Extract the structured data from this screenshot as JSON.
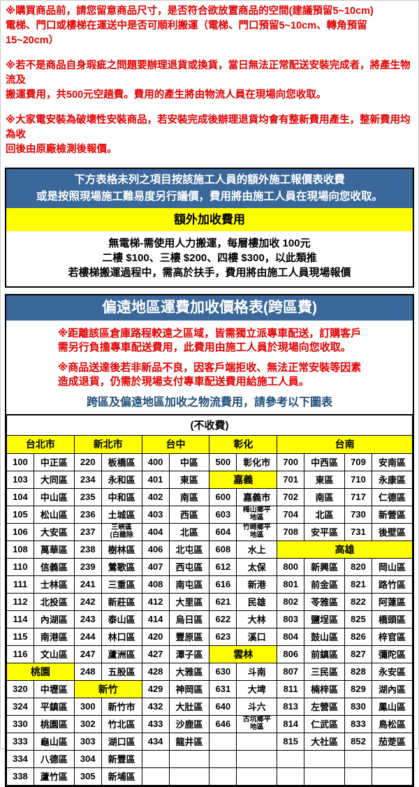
{
  "colors": {
    "warning_red": "#e30000",
    "header_blue": "#3a689a",
    "highlight_yellow": "#ffff00",
    "note_blue": "#1f4e79"
  },
  "top_notice": {
    "paragraphs": [
      [
        "※購買商品前，請您留意商品尺寸，是否符合欲放置商品的空間(建議預留5~10cm)",
        "電梯、門口或樓梯在運送中是否可順利搬運（電梯、門口預留5~10cm、轉角預留15~20cm）"
      ],
      [
        "※若不是商品自身瑕疵之問題要辦理退貨或換貨，當日無法正常配送安裝完成者，將產生物流及",
        "搬運費用，共500元空趟費。費用的產生將由物流人員在現場向您收取。"
      ],
      [
        "※大家電安裝為破壞性安裝商品，若安裝完成後辦理退貨均會有整新費用產生，整新費用均為收",
        "回後由原廠檢測後報價。"
      ]
    ]
  },
  "extra_fee_box": {
    "header_lines": [
      "下方表格未列之項目按該施工人員的額外施工報價表收費",
      "或是按照現場施工難易度另行議價，費用將由施工人員在現場向您收取。"
    ],
    "yellow_title": "額外加收費用",
    "body_lines": [
      "無電梯-需使用人力搬運，每層樓加收 100元",
      "二樓 $100、三樓 $200、四樓 $300，以此類推",
      "若樓梯搬運過程中，需高於扶手，費用將由施工人員現場報價"
    ]
  },
  "remote_fee_box": {
    "title": "偏遠地區運費加收價格表(跨區費)",
    "warnings": [
      [
        "※距離該區倉庫路程較遠之區域，皆需獨立派專車配送，訂購客戶",
        "需另行負擔專車配送費用，此費用由施工人員於現場向您收取。"
      ],
      [
        "※商品送達後若非新品不良，因客戶端拒收、無法正常安裝等因素",
        "造成退貨，仍需於現場支付專車配送費用給施工人員。"
      ]
    ],
    "note": "跨區及偏遠地區加收之物流費用，請參考以下圖表",
    "table": {
      "free_label": "(不收費)",
      "header": [
        {
          "label": "台北市",
          "span": 2
        },
        {
          "label": "新北市",
          "span": 2
        },
        {
          "label": "台中",
          "span": 2
        },
        {
          "label": "彰化",
          "span": 2
        },
        {
          "label": "台南",
          "span": 4
        }
      ],
      "rows": [
        [
          {
            "t": "100"
          },
          {
            "t": "中正區"
          },
          {
            "t": "220"
          },
          {
            "t": "板橋區"
          },
          {
            "t": "400"
          },
          {
            "t": "中區"
          },
          {
            "t": "500"
          },
          {
            "t": "彰化市"
          },
          {
            "t": "700"
          },
          {
            "t": "中西區"
          },
          {
            "t": "709"
          },
          {
            "t": "安南區"
          }
        ],
        [
          {
            "t": "103"
          },
          {
            "t": "大同區"
          },
          {
            "t": "234"
          },
          {
            "t": "永和區"
          },
          {
            "t": "401"
          },
          {
            "t": "東區"
          },
          {
            "t": "嘉義",
            "s": 2,
            "h": true
          },
          {
            "t": "701"
          },
          {
            "t": "東區"
          },
          {
            "t": "710"
          },
          {
            "t": "永康區"
          }
        ],
        [
          {
            "t": "104"
          },
          {
            "t": "中山區"
          },
          {
            "t": "235"
          },
          {
            "t": "中和區"
          },
          {
            "t": "402"
          },
          {
            "t": "南區"
          },
          {
            "t": "600"
          },
          {
            "t": "嘉義市"
          },
          {
            "t": "702"
          },
          {
            "t": "南區"
          },
          {
            "t": "717"
          },
          {
            "t": "仁德區"
          }
        ],
        [
          {
            "t": "105"
          },
          {
            "t": "松山區"
          },
          {
            "t": "236"
          },
          {
            "t": "土城區"
          },
          {
            "t": "403"
          },
          {
            "t": "西區"
          },
          {
            "t": "603"
          },
          {
            "t": "梅山鄉平\n地區"
          },
          {
            "t": "704"
          },
          {
            "t": "北區"
          },
          {
            "t": "730"
          },
          {
            "t": "新營區"
          }
        ],
        [
          {
            "t": "106"
          },
          {
            "t": "大安區"
          },
          {
            "t": "237"
          },
          {
            "t": "三峽區\n(白雞除"
          },
          {
            "t": "404"
          },
          {
            "t": "北區"
          },
          {
            "t": "604"
          },
          {
            "t": "竹崎鄉平\n地區"
          },
          {
            "t": "708"
          },
          {
            "t": "安平區"
          },
          {
            "t": "731"
          },
          {
            "t": "後壁區"
          }
        ],
        [
          {
            "t": "108"
          },
          {
            "t": "萬華區"
          },
          {
            "t": "238"
          },
          {
            "t": "樹林區"
          },
          {
            "t": "406"
          },
          {
            "t": "北屯區"
          },
          {
            "t": "608"
          },
          {
            "t": "水上"
          },
          {
            "t": "高雄",
            "s": 4,
            "h": true
          }
        ],
        [
          {
            "t": "110"
          },
          {
            "t": "信義區"
          },
          {
            "t": "239"
          },
          {
            "t": "鶯歌區"
          },
          {
            "t": "407"
          },
          {
            "t": "西屯區"
          },
          {
            "t": "612"
          },
          {
            "t": "太保"
          },
          {
            "t": "800"
          },
          {
            "t": "新興區"
          },
          {
            "t": "820"
          },
          {
            "t": "岡山區"
          }
        ],
        [
          {
            "t": "111"
          },
          {
            "t": "士林區"
          },
          {
            "t": "241"
          },
          {
            "t": "三重區"
          },
          {
            "t": "408"
          },
          {
            "t": "南屯區"
          },
          {
            "t": "616"
          },
          {
            "t": "新港"
          },
          {
            "t": "801"
          },
          {
            "t": "前金區"
          },
          {
            "t": "821"
          },
          {
            "t": "路竹區"
          }
        ],
        [
          {
            "t": "112"
          },
          {
            "t": "北投區"
          },
          {
            "t": "242"
          },
          {
            "t": "新莊區"
          },
          {
            "t": "412"
          },
          {
            "t": "大里區"
          },
          {
            "t": "621"
          },
          {
            "t": "民雄"
          },
          {
            "t": "802"
          },
          {
            "t": "苓雅區"
          },
          {
            "t": "822"
          },
          {
            "t": "阿蓮區"
          }
        ],
        [
          {
            "t": "114"
          },
          {
            "t": "內湖區"
          },
          {
            "t": "243"
          },
          {
            "t": "泰山區"
          },
          {
            "t": "414"
          },
          {
            "t": "烏日區"
          },
          {
            "t": "622"
          },
          {
            "t": "大林"
          },
          {
            "t": "803"
          },
          {
            "t": "鹽埕區"
          },
          {
            "t": "825"
          },
          {
            "t": "橋頭區"
          }
        ],
        [
          {
            "t": "115"
          },
          {
            "t": "南港區"
          },
          {
            "t": "244"
          },
          {
            "t": "林口區"
          },
          {
            "t": "420"
          },
          {
            "t": "豐原區"
          },
          {
            "t": "623"
          },
          {
            "t": "溪口"
          },
          {
            "t": "804"
          },
          {
            "t": "鼓山區"
          },
          {
            "t": "826"
          },
          {
            "t": "梓官區"
          }
        ],
        [
          {
            "t": "116"
          },
          {
            "t": "文山區"
          },
          {
            "t": "247"
          },
          {
            "t": "蘆洲區"
          },
          {
            "t": "427"
          },
          {
            "t": "潭子區"
          },
          {
            "t": "雲林",
            "s": 2,
            "h": true
          },
          {
            "t": "806"
          },
          {
            "t": "前鎮區"
          },
          {
            "t": "827"
          },
          {
            "t": "彌陀區"
          }
        ],
        [
          {
            "t": "桃園",
            "s": 2,
            "h": true
          },
          {
            "t": "248"
          },
          {
            "t": "五股區"
          },
          {
            "t": "428"
          },
          {
            "t": "大雅區"
          },
          {
            "t": "630"
          },
          {
            "t": "斗南"
          },
          {
            "t": "807"
          },
          {
            "t": "三民區"
          },
          {
            "t": "828"
          },
          {
            "t": "永安區"
          }
        ],
        [
          {
            "t": "320"
          },
          {
            "t": "中壢區"
          },
          {
            "t": "新竹",
            "s": 2,
            "h": true
          },
          {
            "t": "429"
          },
          {
            "t": "神岡區"
          },
          {
            "t": "631"
          },
          {
            "t": "大埤"
          },
          {
            "t": "811"
          },
          {
            "t": "楠梓區"
          },
          {
            "t": "829"
          },
          {
            "t": "湖內區"
          }
        ],
        [
          {
            "t": "324"
          },
          {
            "t": "平鎮區"
          },
          {
            "t": "300"
          },
          {
            "t": "新竹市"
          },
          {
            "t": "432"
          },
          {
            "t": "大肚區"
          },
          {
            "t": "640"
          },
          {
            "t": "斗六"
          },
          {
            "t": "813"
          },
          {
            "t": "左營區"
          },
          {
            "t": "830"
          },
          {
            "t": "鳳山區"
          }
        ],
        [
          {
            "t": "330"
          },
          {
            "t": "桃園區"
          },
          {
            "t": "302"
          },
          {
            "t": "竹北區"
          },
          {
            "t": "433"
          },
          {
            "t": "沙鹿區"
          },
          {
            "t": "646"
          },
          {
            "t": "古坑鄉平\n地區"
          },
          {
            "t": "814"
          },
          {
            "t": "仁武區"
          },
          {
            "t": "833"
          },
          {
            "t": "鳥松區"
          }
        ],
        [
          {
            "t": "333"
          },
          {
            "t": "龜山區"
          },
          {
            "t": "303"
          },
          {
            "t": "湖口區"
          },
          {
            "t": "434"
          },
          {
            "t": "龍井區"
          },
          {
            "t": ""
          },
          {
            "t": ""
          },
          {
            "t": "815"
          },
          {
            "t": "大社區"
          },
          {
            "t": "852"
          },
          {
            "t": "茄萣區"
          }
        ],
        [
          {
            "t": "334"
          },
          {
            "t": "八德區"
          },
          {
            "t": "304"
          },
          {
            "t": "新豐區"
          },
          {
            "t": ""
          },
          {
            "t": ""
          },
          {
            "t": ""
          },
          {
            "t": ""
          },
          {
            "t": ""
          },
          {
            "t": ""
          },
          {
            "t": ""
          },
          {
            "t": ""
          }
        ],
        [
          {
            "t": "338"
          },
          {
            "t": "蘆竹區"
          },
          {
            "t": "305"
          },
          {
            "t": "新埔區"
          },
          {
            "t": ""
          },
          {
            "t": ""
          },
          {
            "t": ""
          },
          {
            "t": ""
          },
          {
            "t": ""
          },
          {
            "t": ""
          },
          {
            "t": ""
          },
          {
            "t": ""
          }
        ]
      ]
    }
  }
}
